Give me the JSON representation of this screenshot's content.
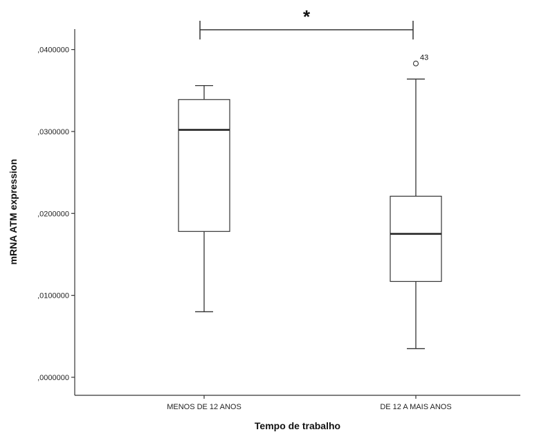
{
  "chart_data": {
    "type": "boxplot",
    "title": "",
    "xlabel": "Tempo de trabalho",
    "ylabel": "mRNA ATM expression",
    "ylim": [
      -0.0022,
      0.0425
    ],
    "yticks": [
      0.0,
      0.01,
      0.02,
      0.03,
      0.04
    ],
    "ytick_labels": [
      ",0000000",
      ",0100000",
      ",0200000",
      ",0300000",
      ",0400000"
    ],
    "categories": [
      "MENOS DE 12 ANOS",
      "DE 12 A MAIS ANOS"
    ],
    "boxes": [
      {
        "category": "MENOS DE 12 ANOS",
        "min": 0.008,
        "q1": 0.0178,
        "median": 0.0302,
        "q3": 0.0339,
        "max": 0.0356,
        "outliers": []
      },
      {
        "category": "DE 12 A MAIS ANOS",
        "min": 0.0035,
        "q1": 0.0117,
        "median": 0.0175,
        "q3": 0.0221,
        "max": 0.0364,
        "outliers": [
          {
            "value": 0.0383,
            "label": "43"
          }
        ]
      }
    ],
    "significance": {
      "between": [
        "MENOS DE 12 ANOS",
        "DE 12 A MAIS ANOS"
      ],
      "marker": "*"
    },
    "grid": false,
    "legend": "none"
  }
}
